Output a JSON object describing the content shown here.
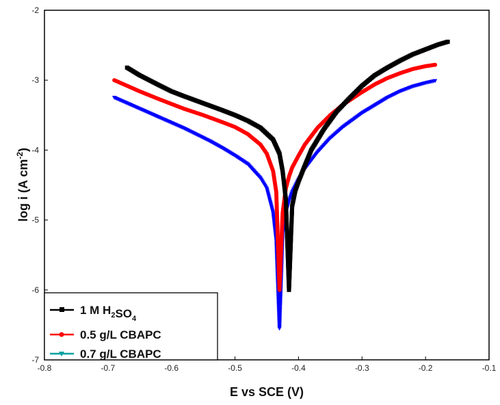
{
  "chart_data": {
    "type": "line",
    "xlabel": "E vs SCE (V)",
    "ylabel_main": "log i (A cm",
    "ylabel_sup": "-2",
    "ylabel_close": ")",
    "xlim": [
      -0.8,
      -0.1
    ],
    "ylim": [
      -7,
      -2
    ],
    "xticks": [
      -0.8,
      -0.7,
      -0.6,
      -0.5,
      -0.4,
      -0.3,
      -0.2,
      -0.1
    ],
    "xtick_labels": [
      "-0.8",
      "-0.7",
      "-0.6",
      "-0.5",
      "-0.4",
      "-0.3",
      "-0.2",
      "-0.1"
    ],
    "yticks": [
      -7,
      -6,
      -5,
      -4,
      -3,
      -2
    ],
    "ytick_labels": [
      "-7",
      "-6",
      "-5",
      "-4",
      "-3",
      "-2"
    ],
    "legend_position": "bottom-left",
    "series": [
      {
        "name_parts": [
          {
            "t": "1 M H",
            "s": "n"
          },
          {
            "t": "2",
            "s": "sub"
          },
          {
            "t": "SO",
            "s": "n"
          },
          {
            "t": "4",
            "s": "sub"
          }
        ],
        "color": "#000000",
        "marker": "square",
        "x": [
          -0.67,
          -0.65,
          -0.62,
          -0.6,
          -0.58,
          -0.55,
          -0.52,
          -0.5,
          -0.48,
          -0.46,
          -0.44,
          -0.43,
          -0.425,
          -0.42,
          -0.415,
          -0.41,
          -0.405,
          -0.4,
          -0.39,
          -0.38,
          -0.36,
          -0.34,
          -0.32,
          -0.3,
          -0.28,
          -0.26,
          -0.24,
          -0.22,
          -0.2,
          -0.18,
          -0.165
        ],
        "y": [
          -2.82,
          -2.93,
          -3.07,
          -3.16,
          -3.23,
          -3.33,
          -3.43,
          -3.5,
          -3.58,
          -3.68,
          -3.85,
          -4.05,
          -4.3,
          -4.7,
          -6.0,
          -4.8,
          -4.58,
          -4.45,
          -4.22,
          -4.0,
          -3.7,
          -3.45,
          -3.26,
          -3.08,
          -2.93,
          -2.82,
          -2.72,
          -2.63,
          -2.56,
          -2.49,
          -2.45
        ]
      },
      {
        "name": "0.5 g/L CBAPC",
        "color": "#ff0000",
        "marker": "circle",
        "x": [
          -0.69,
          -0.67,
          -0.65,
          -0.62,
          -0.6,
          -0.58,
          -0.55,
          -0.52,
          -0.5,
          -0.48,
          -0.46,
          -0.45,
          -0.44,
          -0.435,
          -0.43,
          -0.425,
          -0.42,
          -0.415,
          -0.41,
          -0.4,
          -0.39,
          -0.37,
          -0.35,
          -0.33,
          -0.3,
          -0.28,
          -0.26,
          -0.24,
          -0.22,
          -0.2,
          -0.185
        ],
        "y": [
          -3.0,
          -3.08,
          -3.16,
          -3.27,
          -3.34,
          -3.41,
          -3.5,
          -3.6,
          -3.67,
          -3.77,
          -3.92,
          -4.05,
          -4.3,
          -4.6,
          -6.0,
          -4.9,
          -4.55,
          -4.38,
          -4.25,
          -4.08,
          -3.92,
          -3.68,
          -3.5,
          -3.35,
          -3.17,
          -3.06,
          -2.97,
          -2.9,
          -2.84,
          -2.8,
          -2.78
        ]
      },
      {
        "name": "0.7 g/L CBAPC",
        "color": "#0000ff",
        "marker": "triangle",
        "x": [
          -0.69,
          -0.67,
          -0.65,
          -0.62,
          -0.6,
          -0.58,
          -0.56,
          -0.54,
          -0.52,
          -0.5,
          -0.48,
          -0.46,
          -0.45,
          -0.44,
          -0.435,
          -0.43,
          -0.425,
          -0.42,
          -0.415,
          -0.41,
          -0.4,
          -0.39,
          -0.37,
          -0.35,
          -0.33,
          -0.3,
          -0.28,
          -0.26,
          -0.24,
          -0.22,
          -0.2,
          -0.185
        ],
        "y": [
          -3.25,
          -3.33,
          -3.41,
          -3.53,
          -3.61,
          -3.69,
          -3.78,
          -3.87,
          -3.97,
          -4.08,
          -4.2,
          -4.4,
          -4.55,
          -4.9,
          -5.3,
          -6.55,
          -5.2,
          -4.9,
          -4.73,
          -4.6,
          -4.42,
          -4.27,
          -4.03,
          -3.83,
          -3.67,
          -3.47,
          -3.36,
          -3.25,
          -3.16,
          -3.09,
          -3.04,
          -3.01
        ]
      }
    ]
  },
  "legend_marker_colors": [
    "#000000",
    "#ff0000",
    "#00a0a0"
  ]
}
